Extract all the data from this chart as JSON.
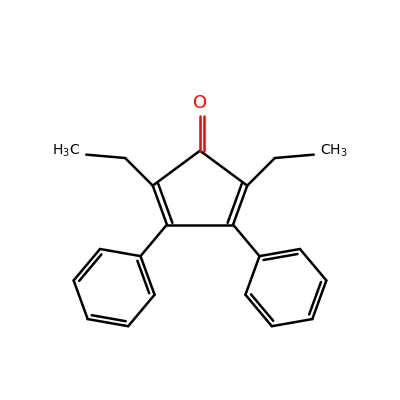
{
  "bg_color": "#ffffff",
  "bond_color": "#000000",
  "oxygen_color": "#ff0000",
  "line_width": 1.8,
  "font_size_O": 13,
  "font_size_label": 10
}
